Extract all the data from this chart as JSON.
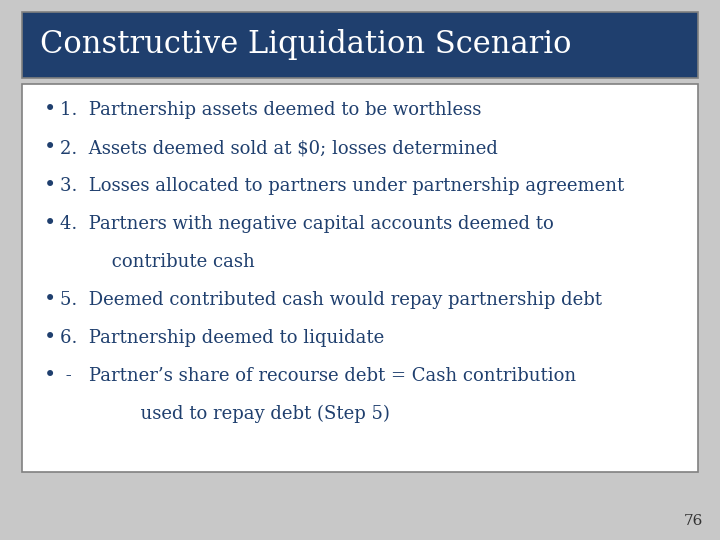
{
  "title": "Constructive Liquidation Scenario",
  "title_bg_color": "#1F3F6E",
  "title_text_color": "#FFFFFF",
  "body_bg_color": "#FFFFFF",
  "body_border_color": "#808080",
  "slide_bg_color": "#C8C8C8",
  "text_color": "#1F3F6E",
  "page_number": "76",
  "font_size": 13.0,
  "title_font_size": 22,
  "bullet_lines": [
    {
      "has_bullet": true,
      "text": "1.  Partnership assets deemed to be worthless"
    },
    {
      "has_bullet": true,
      "text": "2.  Assets deemed sold at $0; losses determined"
    },
    {
      "has_bullet": true,
      "text": "3.  Losses allocated to partners under partnership agreement"
    },
    {
      "has_bullet": true,
      "text": "4.  Partners with negative capital accounts deemed to"
    },
    {
      "has_bullet": false,
      "text": "         contribute cash"
    },
    {
      "has_bullet": true,
      "text": "5.  Deemed contributed cash would repay partnership debt"
    },
    {
      "has_bullet": true,
      "text": "6.  Partnership deemed to liquidate"
    },
    {
      "has_bullet": true,
      "text": " -   Partner’s share of recourse debt = Cash contribution"
    },
    {
      "has_bullet": false,
      "text": "              used to repay debt (Step 5)"
    }
  ]
}
